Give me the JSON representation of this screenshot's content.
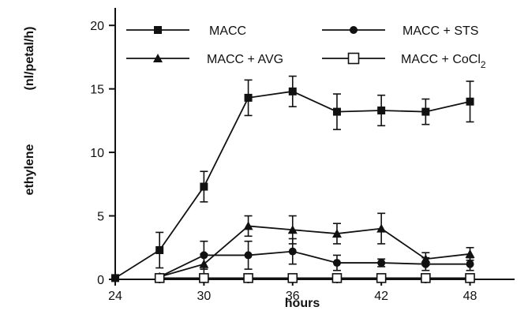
{
  "chart_data": {
    "type": "line",
    "title": "",
    "xlabel": "hours",
    "ylabel": "ethylene",
    "ylabel_unit": "(nl/petal/h)",
    "xlim": [
      24,
      50
    ],
    "ylim": [
      0,
      22
    ],
    "xticks": [
      24,
      30,
      36,
      42,
      48
    ],
    "yticks": [
      0,
      5,
      10,
      15,
      20
    ],
    "grid": false,
    "legend_position": "top",
    "series": [
      {
        "name": "MACC",
        "marker": "filled-square",
        "x": [
          24,
          27,
          30,
          33,
          36,
          39,
          42,
          45,
          48
        ],
        "y": [
          0.1,
          2.3,
          7.3,
          14.3,
          14.8,
          13.2,
          13.3,
          13.2,
          14.0
        ],
        "err": [
          0,
          1.4,
          1.2,
          1.4,
          1.2,
          1.4,
          1.2,
          1.0,
          1.6
        ]
      },
      {
        "name": "MACC + STS",
        "marker": "filled-circle",
        "x": [
          27,
          30,
          33,
          36,
          39,
          42,
          45,
          48
        ],
        "y": [
          0.2,
          1.9,
          1.9,
          2.2,
          1.3,
          1.3,
          1.2,
          1.2
        ],
        "err": [
          0,
          1.1,
          1.1,
          1.0,
          0.6,
          0.3,
          0.5,
          0.5
        ]
      },
      {
        "name": "MACC + AVG",
        "marker": "filled-triangle",
        "x": [
          27,
          30,
          33,
          36,
          39,
          42,
          45,
          48
        ],
        "y": [
          0.2,
          1.2,
          4.2,
          3.9,
          3.6,
          4.0,
          1.6,
          2.0
        ],
        "err": [
          0,
          0.8,
          0.8,
          1.1,
          0.8,
          1.2,
          0.5,
          0.5
        ]
      },
      {
        "name": "MACC + CoCl",
        "name_subscript": "2",
        "marker": "open-square",
        "x": [
          27,
          30,
          33,
          36,
          39,
          42,
          45,
          48
        ],
        "y": [
          0.1,
          0.1,
          0.1,
          0.1,
          0.1,
          0.1,
          0.1,
          0.1
        ],
        "err": [
          0,
          0,
          0,
          0,
          0,
          0,
          0,
          0
        ]
      }
    ]
  }
}
